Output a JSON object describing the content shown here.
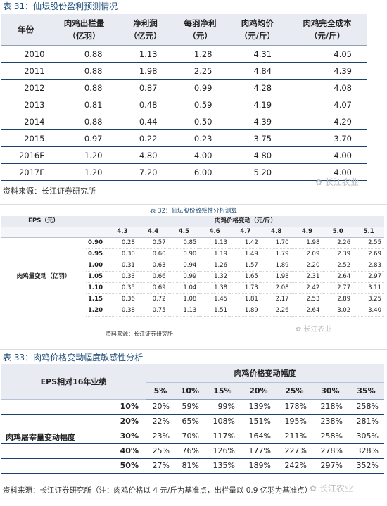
{
  "table1": {
    "caption_prefix": "表 31：",
    "caption": "仙坛股份盈利预测情况",
    "headers": [
      [
        "年份"
      ],
      [
        "肉鸡出栏量",
        "（亿羽）"
      ],
      [
        "净利润",
        "（亿元）"
      ],
      [
        "每羽净利",
        "（元）"
      ],
      [
        "肉鸡均价",
        "（元/斤）"
      ],
      [
        "肉鸡完全成本",
        "（元/斤）"
      ]
    ],
    "rows": [
      [
        "2010",
        "0.88",
        "1.13",
        "1.28",
        "4.31",
        "4.05"
      ],
      [
        "2011",
        "0.88",
        "1.98",
        "2.25",
        "4.84",
        "4.39"
      ],
      [
        "2012",
        "0.88",
        "0.87",
        "0.99",
        "4.28",
        "4.08"
      ],
      [
        "2013",
        "0.81",
        "0.48",
        "0.59",
        "4.19",
        "4.07"
      ],
      [
        "2014",
        "0.88",
        "0.44",
        "0.50",
        "4.39",
        "4.29"
      ],
      [
        "2015",
        "0.97",
        "0.22",
        "0.23",
        "3.75",
        "3.70"
      ],
      [
        "2016E",
        "1.20",
        "4.80",
        "4.00",
        "4.80",
        "4.00"
      ],
      [
        "2017E",
        "1.20",
        "7.20",
        "6.00",
        "5.20",
        "4.00"
      ]
    ],
    "source": "资料来源：长江证券研究所"
  },
  "watermark": "长江农业",
  "table2": {
    "caption": "表 32：仙坛股份敏感性分析测算",
    "corner_label": "EPS（元）",
    "col_group_label": "肉鸡价格变动（元/斤）",
    "row_group_label": "肉鸡量变动（亿羽）",
    "col_headers": [
      "4.3",
      "4.4",
      "4.5",
      "4.6",
      "4.7",
      "4.8",
      "4.9",
      "5.0",
      "5.1"
    ],
    "row_headers": [
      "0.90",
      "0.95",
      "1.00",
      "1.05",
      "1.10",
      "1.15",
      "1.20"
    ],
    "values": [
      [
        "0.28",
        "0.57",
        "0.85",
        "1.13",
        "1.42",
        "1.70",
        "1.98",
        "2.26",
        "2.55"
      ],
      [
        "0.30",
        "0.60",
        "0.90",
        "1.19",
        "1.49",
        "1.79",
        "2.09",
        "2.39",
        "2.69"
      ],
      [
        "0.31",
        "0.63",
        "0.94",
        "1.26",
        "1.57",
        "1.89",
        "2.20",
        "2.52",
        "2.83"
      ],
      [
        "0.33",
        "0.66",
        "0.99",
        "1.32",
        "1.65",
        "1.98",
        "2.31",
        "2.64",
        "2.97"
      ],
      [
        "0.35",
        "0.69",
        "1.04",
        "1.38",
        "1.73",
        "2.08",
        "2.42",
        "2.77",
        "3.11"
      ],
      [
        "0.36",
        "0.72",
        "1.08",
        "1.45",
        "1.81",
        "2.17",
        "2.53",
        "2.89",
        "3.25"
      ],
      [
        "0.38",
        "0.75",
        "1.13",
        "1.51",
        "1.89",
        "2.26",
        "2.64",
        "3.02",
        "3.40"
      ]
    ],
    "source": "资料来源：长江证券研究所"
  },
  "table3": {
    "caption_prefix": "表 33：",
    "caption": "肉鸡价格变动幅度敏感性分析",
    "corner_label": "EPS相对16年业绩",
    "col_group_label": "肉鸡价格变动幅度",
    "row_group_label": "肉鸡屠宰量变动幅度",
    "col_headers": [
      "5%",
      "10%",
      "15%",
      "20%",
      "25%",
      "30%",
      "35%"
    ],
    "row_headers": [
      "10%",
      "20%",
      "30%",
      "40%",
      "50%"
    ],
    "values": [
      [
        "20%",
        "59%",
        "99%",
        "139%",
        "178%",
        "218%",
        "258%"
      ],
      [
        "22%",
        "65%",
        "108%",
        "151%",
        "195%",
        "238%",
        "281%"
      ],
      [
        "23%",
        "70%",
        "117%",
        "164%",
        "211%",
        "258%",
        "305%"
      ],
      [
        "25%",
        "76%",
        "126%",
        "177%",
        "227%",
        "278%",
        "328%"
      ],
      [
        "27%",
        "81%",
        "135%",
        "189%",
        "242%",
        "297%",
        "352%"
      ]
    ],
    "source": "资料来源：长江证券研究所（注：肉鸡价格以 4 元/斤为基准点，出栏量以 0.9 亿羽为基准点）"
  },
  "colors": {
    "caption_blue": "#1f4e79",
    "header_bg": "#e9ebf2",
    "rule_dark": "#1f3f70",
    "rule_light": "#8fa0bd"
  }
}
